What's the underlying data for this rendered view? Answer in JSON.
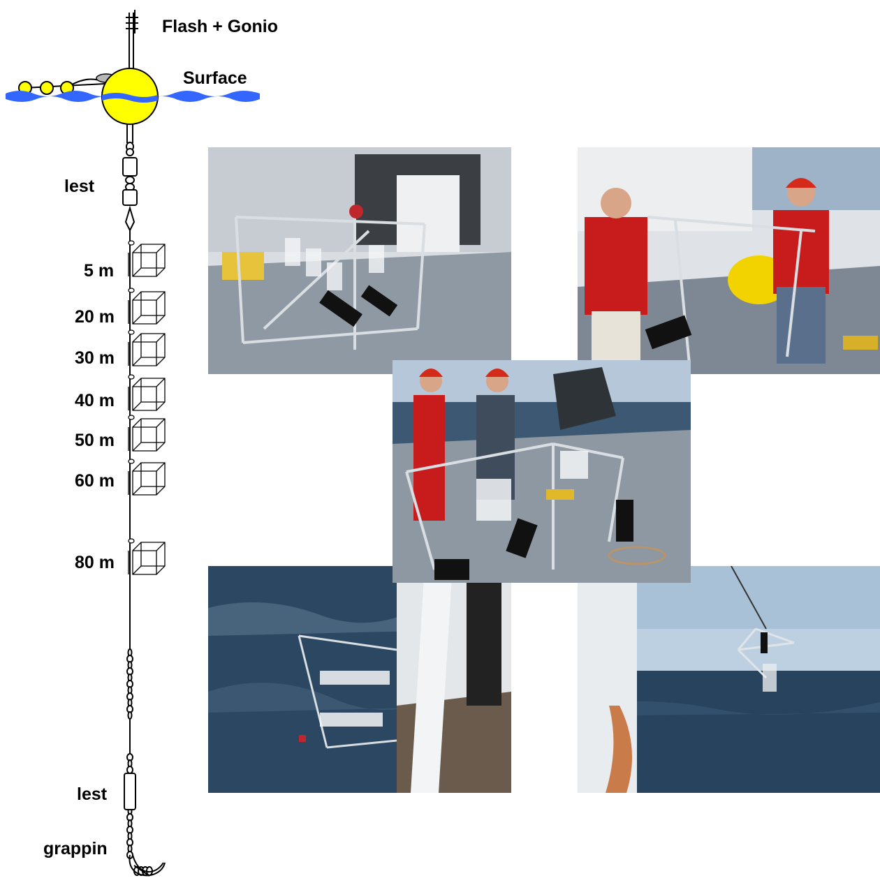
{
  "labels": {
    "flash_gonio": "Flash + Gonio",
    "surface": "Surface",
    "lest_top": "lest",
    "depth_5": "5 m",
    "depth_20": "20 m",
    "depth_30": "30 m",
    "depth_40": "40 m",
    "depth_50": "50 m",
    "depth_60": "60 m",
    "depth_80": "80 m",
    "lest_bottom": "lest",
    "grappin": "grappin"
  },
  "colors": {
    "buoy": "#ffff00",
    "water": "#3366ff",
    "sea_dark": "#1f3a52",
    "sky": "#b9cfe3",
    "deck": "#8c97a3",
    "hull_white": "#e8ecef",
    "jacket_red": "#c81c1c",
    "helmet_red": "#d42a1a"
  },
  "photos": [
    {
      "name": "photo-frame-on-deck",
      "description_icon": "photo-icon"
    },
    {
      "name": "photo-two-men-carrying-frame",
      "description_icon": "photo-icon"
    },
    {
      "name": "photo-crew-with-frame",
      "description_icon": "photo-icon"
    },
    {
      "name": "photo-frame-in-water",
      "description_icon": "photo-icon"
    },
    {
      "name": "photo-frame-lowered-by-crane",
      "description_icon": "photo-icon"
    }
  ]
}
